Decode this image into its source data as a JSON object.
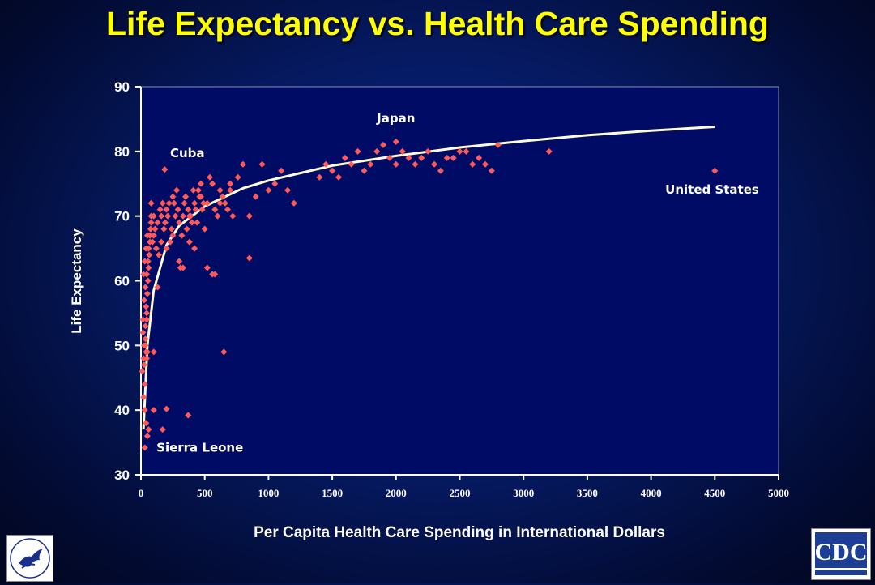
{
  "title": "Life Expectancy vs. Health Care Spending",
  "logos": {
    "hhs": "hhs-eagle-logo",
    "cdc": "CDC"
  },
  "chart_data": {
    "type": "scatter",
    "xlabel": "Per Capita Health Care Spending in International Dollars",
    "ylabel": "Life Expectancy",
    "xlim": [
      0,
      5000
    ],
    "ylim": [
      30,
      90
    ],
    "xticks": [
      "0",
      "500",
      "1000",
      "1500",
      "2000",
      "2500",
      "3000",
      "3500",
      "4000",
      "4500",
      "5000"
    ],
    "yticks": [
      "30",
      "40",
      "50",
      "60",
      "70",
      "80",
      "90"
    ],
    "grid": false,
    "annotations": [
      {
        "text": "Japan",
        "x": 2000,
        "y": 81.5
      },
      {
        "text": "Cuba",
        "x": 186,
        "y": 77.2
      },
      {
        "text": "United States",
        "x": 4500,
        "y": 77
      },
      {
        "text": "Sierra Leone",
        "x": 30,
        "y": 34.2
      }
    ],
    "trendline": {
      "x": [
        20,
        50,
        100,
        200,
        300,
        500,
        800,
        1000,
        1500,
        2000,
        2500,
        3000,
        3500,
        4000,
        4500
      ],
      "y": [
        37,
        50,
        58.5,
        65.5,
        68.5,
        71.5,
        74.3,
        75.5,
        77.8,
        79.3,
        80.6,
        81.6,
        82.5,
        83.2,
        83.8
      ]
    },
    "colors": {
      "points": "#ff5a5a",
      "trendline": "#fffbd0",
      "plot_bg": "#000b66",
      "text": "#ffffff",
      "title": "#ffff00"
    },
    "series": [
      {
        "x": [
          10,
          15,
          20,
          25,
          30,
          35,
          40,
          45,
          50,
          55,
          60,
          65,
          70,
          75,
          80,
          20,
          30,
          40,
          50,
          60,
          25,
          35,
          45,
          20,
          30,
          40,
          50,
          15,
          25,
          35,
          45,
          55,
          60,
          70,
          80,
          90,
          100,
          110,
          120,
          130,
          140,
          150,
          160,
          170,
          180,
          190,
          200,
          210,
          220,
          230,
          240,
          250,
          260,
          270,
          280,
          290,
          300,
          310,
          320,
          330,
          340,
          350,
          360,
          370,
          380,
          390,
          400,
          410,
          420,
          430,
          440,
          450,
          460,
          470,
          480,
          490,
          500,
          520,
          540,
          560,
          580,
          600,
          620,
          640,
          660,
          680,
          700,
          720,
          80,
          100,
          130,
          160,
          200,
          250,
          300,
          330,
          380,
          420,
          470,
          520,
          560,
          620,
          700,
          760,
          800,
          850,
          900,
          950,
          1000,
          1050,
          1100,
          1150,
          1200,
          1400,
          1450,
          1500,
          1550,
          1600,
          1650,
          1700,
          1750,
          1800,
          1850,
          1900,
          1950,
          2000,
          2050,
          2100,
          2150,
          2200,
          2250,
          2300,
          2350,
          2400,
          2450,
          2500,
          2550,
          2600,
          2650,
          2700,
          2750,
          2800,
          3200,
          4500,
          2000,
          186,
          30,
          100,
          200,
          370,
          650,
          850,
          580,
          170,
          100,
          50,
          40,
          35,
          45
        ],
        "y": [
          46,
          52,
          48,
          50,
          44,
          53,
          56,
          54,
          58,
          60,
          62,
          64,
          66,
          68,
          70,
          42,
          40,
          38,
          36,
          37,
          47,
          51,
          55,
          61,
          63,
          65,
          67,
          54,
          57,
          59,
          61,
          63,
          65,
          67,
          69,
          66,
          70,
          68,
          65,
          69,
          64,
          71,
          70,
          72,
          68,
          69,
          71,
          70,
          72,
          66,
          68,
          73,
          72,
          70,
          74,
          71,
          69,
          62,
          67,
          70,
          72,
          73,
          68,
          71,
          66,
          70,
          69,
          74,
          72,
          71,
          69,
          74,
          73,
          75,
          71,
          72,
          68,
          72,
          76,
          75,
          71,
          70,
          74,
          73,
          72,
          71,
          75,
          70,
          72,
          67,
          59,
          66,
          65,
          67,
          63,
          62,
          70,
          65,
          73,
          62,
          61,
          72,
          74,
          76,
          78,
          70,
          73,
          78,
          74,
          75,
          77,
          74,
          72,
          76,
          78,
          77,
          76,
          79,
          78,
          80,
          77,
          78,
          80,
          81,
          79,
          78,
          80,
          79,
          78,
          79,
          80,
          78,
          77,
          79,
          79,
          80,
          80,
          78,
          79,
          78,
          77,
          81,
          80,
          77,
          81.5,
          77.2,
          34.2,
          40,
          40.2,
          39.2,
          49,
          63.5,
          61,
          37,
          49,
          49,
          49,
          50,
          48
        ],
        "name": ""
      }
    ]
  }
}
